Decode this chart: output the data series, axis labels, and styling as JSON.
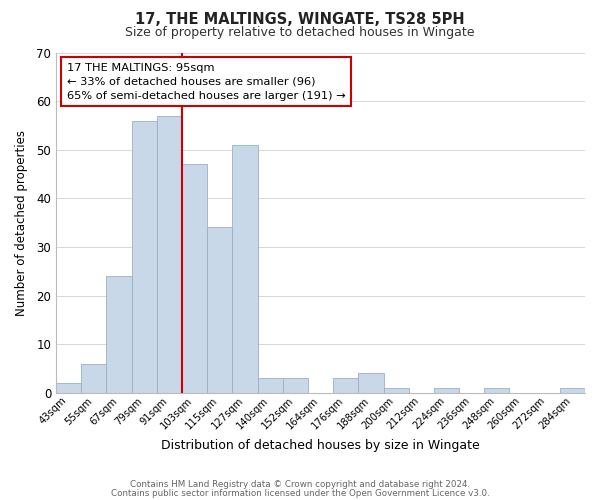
{
  "title": "17, THE MALTINGS, WINGATE, TS28 5PH",
  "subtitle": "Size of property relative to detached houses in Wingate",
  "xlabel": "Distribution of detached houses by size in Wingate",
  "ylabel": "Number of detached properties",
  "bar_labels": [
    "43sqm",
    "55sqm",
    "67sqm",
    "79sqm",
    "91sqm",
    "103sqm",
    "115sqm",
    "127sqm",
    "140sqm",
    "152sqm",
    "164sqm",
    "176sqm",
    "188sqm",
    "200sqm",
    "212sqm",
    "224sqm",
    "236sqm",
    "248sqm",
    "260sqm",
    "272sqm",
    "284sqm"
  ],
  "bar_values": [
    2,
    6,
    24,
    56,
    57,
    47,
    34,
    51,
    3,
    3,
    0,
    3,
    4,
    1,
    0,
    1,
    0,
    1,
    0,
    0,
    1
  ],
  "bar_color": "#c8d8e8",
  "bar_edge_color": "#9ab0c8",
  "red_line_x": 4.5,
  "red_line_color": "#cc0000",
  "ylim": [
    0,
    70
  ],
  "yticks": [
    0,
    10,
    20,
    30,
    40,
    50,
    60,
    70
  ],
  "annotation_title": "17 THE MALTINGS: 95sqm",
  "annotation_line1": "← 33% of detached houses are smaller (96)",
  "annotation_line2": "65% of semi-detached houses are larger (191) →",
  "annotation_box_color": "#ffffff",
  "annotation_box_edge": "#cc0000",
  "footer1": "Contains HM Land Registry data © Crown copyright and database right 2024.",
  "footer2": "Contains public sector information licensed under the Open Government Licence v3.0.",
  "bg_color": "#ffffff",
  "grid_color": "#d8d8d8"
}
